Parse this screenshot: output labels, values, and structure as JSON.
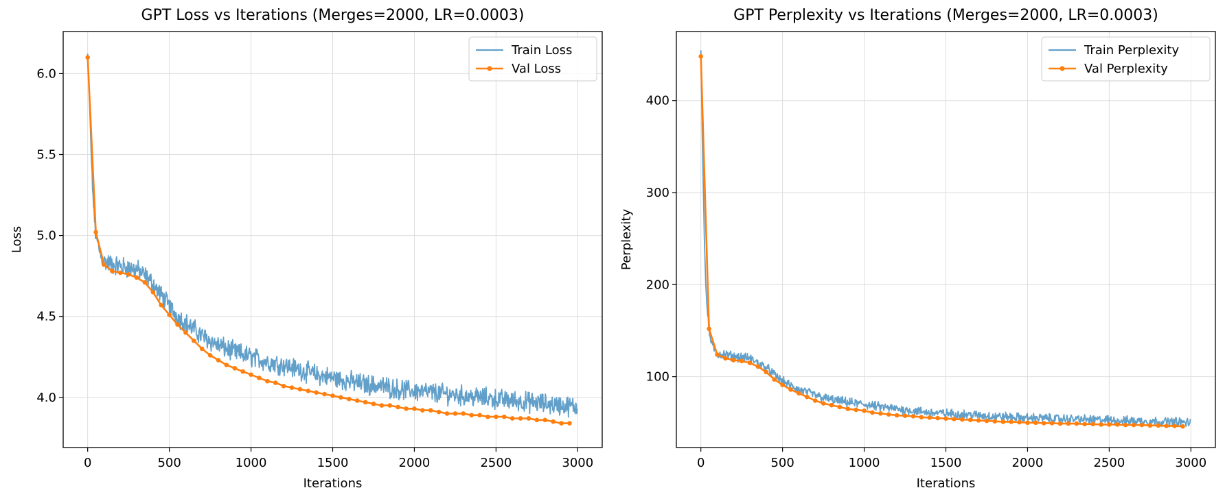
{
  "figure": {
    "background": "#ffffff"
  },
  "colors": {
    "train": "#1f77b4",
    "val": "#ff7f0e",
    "grid": "#dddddd",
    "axis": "#000000"
  },
  "chart_data": [
    {
      "type": "line",
      "title": "GPT Loss vs Iterations (Merges=2000, LR=0.0003)",
      "xlabel": "Iterations",
      "ylabel": "Loss",
      "xlim": [
        -150,
        3150
      ],
      "ylim": [
        3.69,
        6.26
      ],
      "xticks": [
        0,
        500,
        1000,
        1500,
        2000,
        2500,
        3000
      ],
      "xtick_labels": [
        "0",
        "500",
        "1000",
        "1500",
        "2000",
        "2500",
        "3000"
      ],
      "yticks": [
        4.0,
        4.5,
        5.0,
        5.5,
        6.0
      ],
      "ytick_labels": [
        "4.0",
        "4.5",
        "5.0",
        "5.5",
        "6.0"
      ],
      "grid": true,
      "legend": "top-right",
      "series": [
        {
          "name": "Train Loss",
          "style": "noisy-line",
          "x": [
            0,
            10,
            20,
            30,
            40,
            50,
            60,
            80,
            100,
            150,
            200,
            250,
            300,
            350,
            400,
            450,
            500,
            550,
            600,
            650,
            700,
            750,
            800,
            900,
            1000,
            1100,
            1200,
            1300,
            1400,
            1500,
            1600,
            1700,
            1800,
            1900,
            2000,
            2100,
            2200,
            2300,
            2400,
            2500,
            2600,
            2700,
            2800,
            2900,
            2999
          ],
          "values": [
            6.12,
            5.85,
            5.55,
            5.3,
            5.12,
            5.0,
            4.95,
            4.88,
            4.84,
            4.82,
            4.81,
            4.8,
            4.79,
            4.75,
            4.7,
            4.63,
            4.56,
            4.5,
            4.46,
            4.42,
            4.38,
            4.35,
            4.32,
            4.28,
            4.25,
            4.22,
            4.2,
            4.17,
            4.14,
            4.12,
            4.1,
            4.08,
            4.07,
            4.05,
            4.04,
            4.03,
            4.02,
            4.01,
            4.0,
            3.99,
            3.98,
            3.97,
            3.96,
            3.95,
            3.94
          ],
          "noise": 0.05
        },
        {
          "name": "Val Loss",
          "style": "line-markers",
          "x": [
            0,
            50,
            100,
            150,
            200,
            250,
            300,
            350,
            400,
            450,
            500,
            550,
            600,
            650,
            700,
            750,
            800,
            850,
            900,
            950,
            1000,
            1050,
            1100,
            1150,
            1200,
            1250,
            1300,
            1350,
            1400,
            1450,
            1500,
            1550,
            1600,
            1650,
            1700,
            1750,
            1800,
            1850,
            1900,
            1950,
            2000,
            2050,
            2100,
            2150,
            2200,
            2250,
            2300,
            2350,
            2400,
            2450,
            2500,
            2550,
            2600,
            2650,
            2700,
            2750,
            2800,
            2850,
            2900,
            2950
          ],
          "values": [
            6.1,
            5.02,
            4.82,
            4.78,
            4.77,
            4.76,
            4.74,
            4.71,
            4.65,
            4.57,
            4.51,
            4.45,
            4.4,
            4.35,
            4.3,
            4.26,
            4.23,
            4.2,
            4.18,
            4.16,
            4.14,
            4.12,
            4.1,
            4.09,
            4.07,
            4.06,
            4.05,
            4.04,
            4.03,
            4.02,
            4.01,
            4.0,
            3.99,
            3.98,
            3.97,
            3.96,
            3.95,
            3.95,
            3.94,
            3.93,
            3.93,
            3.92,
            3.92,
            3.91,
            3.9,
            3.9,
            3.9,
            3.89,
            3.89,
            3.88,
            3.88,
            3.88,
            3.87,
            3.87,
            3.87,
            3.86,
            3.86,
            3.85,
            3.84,
            3.84
          ]
        }
      ]
    },
    {
      "type": "line",
      "title": "GPT Perplexity vs Iterations (Merges=2000, LR=0.0003)",
      "xlabel": "Iterations",
      "ylabel": "Perplexity",
      "xlim": [
        -150,
        3150
      ],
      "ylim": [
        23,
        475
      ],
      "xticks": [
        0,
        500,
        1000,
        1500,
        2000,
        2500,
        3000
      ],
      "xtick_labels": [
        "0",
        "500",
        "1000",
        "1500",
        "2000",
        "2500",
        "3000"
      ],
      "yticks": [
        100,
        200,
        300,
        400
      ],
      "ytick_labels": [
        "100",
        "200",
        "300",
        "400"
      ],
      "grid": true,
      "legend": "top-right",
      "series": [
        {
          "name": "Train Perplexity",
          "style": "noisy-line",
          "x": [
            0,
            10,
            20,
            30,
            40,
            50,
            60,
            80,
            100,
            150,
            200,
            250,
            300,
            350,
            400,
            450,
            500,
            550,
            600,
            650,
            700,
            750,
            800,
            900,
            1000,
            1100,
            1200,
            1300,
            1400,
            1500,
            1600,
            1700,
            1800,
            1900,
            2000,
            2100,
            2200,
            2300,
            2400,
            2500,
            2600,
            2700,
            2800,
            2900,
            2999
          ],
          "values": [
            455,
            350,
            260,
            200,
            170,
            150,
            140,
            130,
            125,
            124,
            122,
            121,
            120,
            115,
            110,
            102,
            95,
            90,
            86,
            83,
            80,
            77,
            75,
            72,
            70,
            67,
            65,
            63,
            61,
            60,
            59,
            58,
            57,
            56,
            55,
            55,
            54,
            54,
            53,
            53,
            52,
            52,
            51,
            51,
            50
          ],
          "noise": 4
        },
        {
          "name": "Val Perplexity",
          "style": "line-markers",
          "x": [
            0,
            50,
            100,
            150,
            200,
            250,
            300,
            350,
            400,
            450,
            500,
            550,
            600,
            650,
            700,
            750,
            800,
            850,
            900,
            950,
            1000,
            1050,
            1100,
            1150,
            1200,
            1250,
            1300,
            1350,
            1400,
            1450,
            1500,
            1550,
            1600,
            1650,
            1700,
            1750,
            1800,
            1850,
            1900,
            1950,
            2000,
            2050,
            2100,
            2150,
            2200,
            2250,
            2300,
            2350,
            2400,
            2450,
            2500,
            2550,
            2600,
            2650,
            2700,
            2750,
            2800,
            2850,
            2900,
            2950
          ],
          "values": [
            448,
            152,
            124,
            120,
            118,
            117,
            115,
            111,
            105,
            97,
            91,
            86,
            82,
            78,
            74,
            71,
            69,
            67,
            65,
            64,
            63,
            61,
            60,
            59,
            58,
            57.5,
            57,
            56,
            55.5,
            55,
            54.5,
            54,
            53.5,
            53,
            52.5,
            52,
            51.5,
            51,
            51,
            50.5,
            50,
            50,
            49.5,
            49.5,
            49,
            49,
            49,
            48.5,
            48.5,
            48,
            48,
            48,
            47.5,
            47.5,
            47.5,
            47,
            47,
            46.5,
            46.5,
            46
          ]
        }
      ]
    }
  ]
}
